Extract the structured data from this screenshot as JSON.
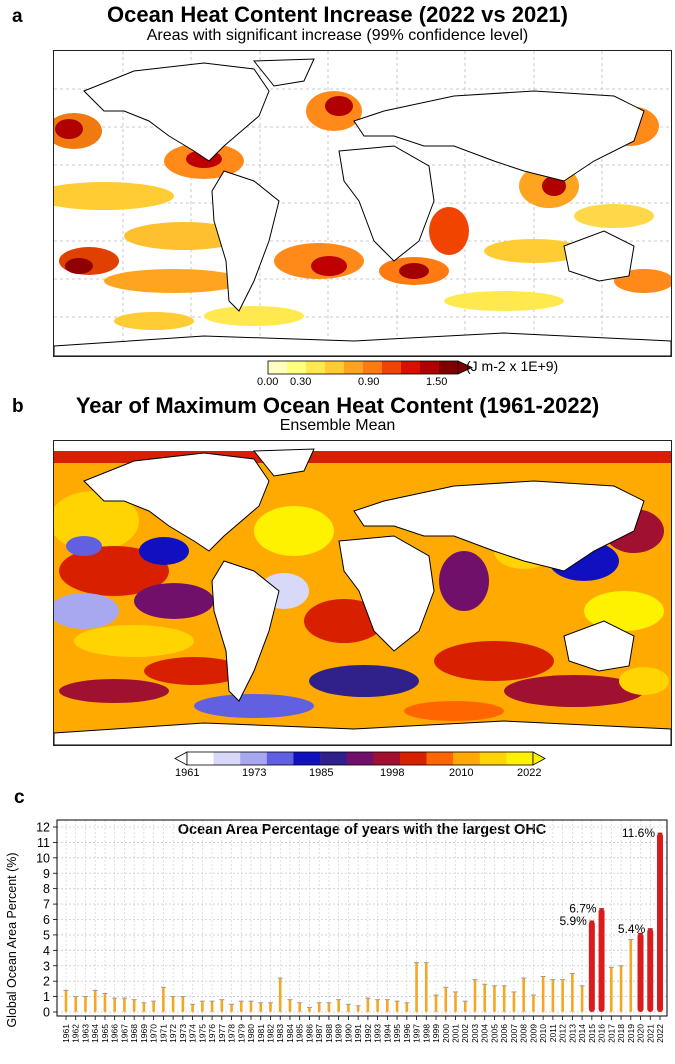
{
  "panel_a": {
    "letter": "a",
    "title": "Ocean Heat Content Increase (2022 vs 2021)",
    "subtitle": "Areas with significant increase (99% confidence level)",
    "colorbar": {
      "ticks": [
        "0.00",
        "0.30",
        "0.90",
        "1.50"
      ],
      "unit": "(J m-2 x 1E+9)",
      "colors": [
        "#ffffc0",
        "#ffff80",
        "#ffe94f",
        "#ffcc33",
        "#ffa420",
        "#ff7a10",
        "#f04400",
        "#d81000",
        "#b00000",
        "#800000"
      ]
    }
  },
  "panel_b": {
    "letter": "b",
    "title": "Year of Maximum Ocean Heat Content (1961-2022)",
    "subtitle": "Ensemble Mean",
    "colorbar": {
      "ticks": [
        "1961",
        "1973",
        "1985",
        "1998",
        "2010",
        "2022"
      ],
      "colors": [
        "#ffffff",
        "#d8d8f8",
        "#a8a8f0",
        "#6060e0",
        "#1010c0",
        "#30208a",
        "#70106a",
        "#a01030",
        "#d82000",
        "#ff6600",
        "#ffaa00",
        "#ffd400",
        "#fff200"
      ]
    }
  },
  "panel_c": {
    "letter": "c"
  },
  "chart_data": {
    "type": "bar",
    "title": "Ocean Area Percentage of years with the largest OHC",
    "xlabel": "",
    "ylabel": "Global Ocean Area Percent (%)",
    "ylim": [
      0,
      12
    ],
    "yticks": [
      0,
      1,
      2,
      3,
      4,
      5,
      6,
      7,
      8,
      9,
      10,
      11,
      12
    ],
    "grid": true,
    "categories": [
      "1961",
      "1962",
      "1963",
      "1964",
      "1965",
      "1966",
      "1967",
      "1968",
      "1969",
      "1970",
      "1971",
      "1972",
      "1973",
      "1974",
      "1975",
      "1976",
      "1977",
      "1978",
      "1979",
      "1980",
      "1981",
      "1982",
      "1983",
      "1984",
      "1985",
      "1986",
      "1987",
      "1988",
      "1989",
      "1990",
      "1991",
      "1992",
      "1993",
      "1994",
      "1995",
      "1996",
      "1997",
      "1998",
      "1999",
      "2000",
      "2001",
      "2002",
      "2003",
      "2004",
      "2005",
      "2006",
      "2007",
      "2008",
      "2009",
      "2010",
      "2011",
      "2012",
      "2013",
      "2014",
      "2015",
      "2016",
      "2017",
      "2018",
      "2019",
      "2020",
      "2021",
      "2022"
    ],
    "values": [
      1.4,
      1.0,
      1.0,
      1.4,
      1.2,
      0.9,
      0.9,
      0.8,
      0.6,
      0.7,
      1.6,
      1.0,
      1.0,
      0.5,
      0.7,
      0.7,
      0.8,
      0.5,
      0.7,
      0.7,
      0.6,
      0.6,
      2.2,
      0.8,
      0.6,
      0.3,
      0.6,
      0.6,
      0.8,
      0.5,
      0.4,
      0.9,
      0.8,
      0.8,
      0.7,
      0.6,
      3.2,
      3.2,
      1.1,
      1.6,
      1.3,
      0.7,
      2.1,
      1.8,
      1.7,
      1.7,
      1.3,
      2.2,
      1.1,
      2.3,
      2.1,
      2.1,
      2.5,
      1.7,
      5.9,
      6.7,
      2.9,
      3.0,
      4.7,
      5.1,
      5.4,
      11.6
    ],
    "annotations": [
      {
        "category": "2015",
        "text": "5.9%"
      },
      {
        "category": "2016",
        "text": "6.7%"
      },
      {
        "category": "2021",
        "text": "5.4%"
      },
      {
        "category": "2022",
        "text": "11.6%"
      }
    ],
    "colors": {
      "orange": "#f5a623",
      "red": "#d91c1c",
      "error": "#9a9a9a",
      "grid": "#cccccc"
    }
  }
}
